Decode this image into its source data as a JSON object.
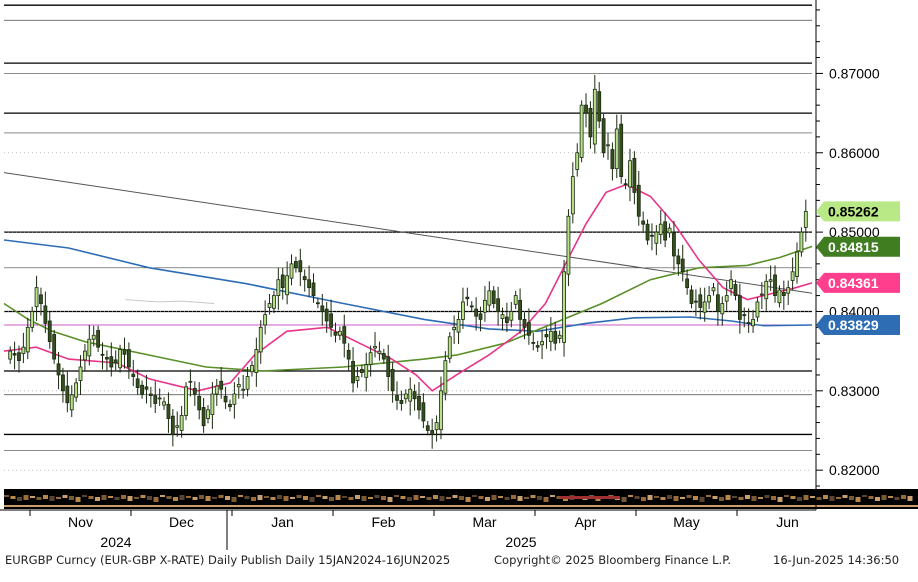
{
  "chart_data": {
    "type": "candlestick",
    "symbol": "EURGBP Curncy (EUR-GBP X-RATE)",
    "ylim": [
      0.8175,
      0.879
    ],
    "y_ticks": [
      "0.82000",
      "0.83000",
      "0.84000",
      "0.85000",
      "0.86000",
      "0.87000"
    ],
    "x_months": [
      "Nov",
      "Dec",
      "Jan",
      "Feb",
      "Mar",
      "Apr",
      "May",
      "Jun"
    ],
    "x_years": [
      "2024",
      "2025"
    ],
    "price_tags": [
      {
        "value": "0.85262",
        "level": 0.85262,
        "bg": "#b8e986",
        "fg": "#000000"
      },
      {
        "value": "0.84815",
        "level": 0.84815,
        "bg": "#3f7d20",
        "fg": "#ffffff"
      },
      {
        "value": "0.84361",
        "level": 0.84361,
        "bg": "#ff3f8e",
        "fg": "#ffffff"
      },
      {
        "value": "0.83829",
        "level": 0.83829,
        "bg": "#2e6db4",
        "fg": "#ffffff"
      }
    ],
    "horizontal_levels": [
      0.8786,
      0.8767,
      0.8713,
      0.87,
      0.865,
      0.8625,
      0.85,
      0.8455,
      0.84,
      0.8383,
      0.8325,
      0.8295,
      0.8245,
      0.8225
    ],
    "trendline": {
      "from": [
        0,
        0.8575
      ],
      "to": [
        1,
        0.8423
      ]
    },
    "series": [
      {
        "name": "",
        "color": "#2e6db4",
        "points": [
          [
            0,
            0.849
          ],
          [
            0.08,
            0.848
          ],
          [
            0.18,
            0.8455
          ],
          [
            0.3,
            0.8435
          ],
          [
            0.42,
            0.841
          ],
          [
            0.52,
            0.839
          ],
          [
            0.6,
            0.8378
          ],
          [
            0.66,
            0.8375
          ],
          [
            0.72,
            0.8385
          ],
          [
            0.78,
            0.8392
          ],
          [
            0.85,
            0.8393
          ],
          [
            0.9,
            0.8388
          ],
          [
            0.94,
            0.8382
          ],
          [
            1,
            0.8383
          ]
        ]
      },
      {
        "name": "",
        "color": "#5a8f29",
        "points": [
          [
            0,
            0.841
          ],
          [
            0.03,
            0.839
          ],
          [
            0.06,
            0.8375
          ],
          [
            0.1,
            0.8362
          ],
          [
            0.18,
            0.8345
          ],
          [
            0.25,
            0.833
          ],
          [
            0.32,
            0.8325
          ],
          [
            0.42,
            0.833
          ],
          [
            0.52,
            0.834
          ],
          [
            0.56,
            0.8345
          ],
          [
            0.62,
            0.836
          ],
          [
            0.68,
            0.8385
          ],
          [
            0.74,
            0.841
          ],
          [
            0.8,
            0.844
          ],
          [
            0.86,
            0.8455
          ],
          [
            0.92,
            0.8458
          ],
          [
            0.96,
            0.8468
          ],
          [
            1,
            0.8482
          ]
        ]
      },
      {
        "name": "",
        "color": "#e8358a",
        "points": [
          [
            0,
            0.835
          ],
          [
            0.04,
            0.8355
          ],
          [
            0.08,
            0.834
          ],
          [
            0.14,
            0.8335
          ],
          [
            0.18,
            0.8315
          ],
          [
            0.24,
            0.83
          ],
          [
            0.28,
            0.831
          ],
          [
            0.31,
            0.8345
          ],
          [
            0.35,
            0.8375
          ],
          [
            0.4,
            0.838
          ],
          [
            0.44,
            0.836
          ],
          [
            0.48,
            0.834
          ],
          [
            0.51,
            0.832
          ],
          [
            0.53,
            0.83
          ],
          [
            0.56,
            0.832
          ],
          [
            0.6,
            0.8345
          ],
          [
            0.64,
            0.8375
          ],
          [
            0.67,
            0.841
          ],
          [
            0.7,
            0.847
          ],
          [
            0.72,
            0.851
          ],
          [
            0.745,
            0.855
          ],
          [
            0.77,
            0.856
          ],
          [
            0.8,
            0.8545
          ],
          [
            0.83,
            0.851
          ],
          [
            0.86,
            0.8465
          ],
          [
            0.89,
            0.843
          ],
          [
            0.92,
            0.8415
          ],
          [
            0.94,
            0.842
          ],
          [
            0.96,
            0.8425
          ],
          [
            0.98,
            0.843
          ],
          [
            1,
            0.8436
          ]
        ]
      },
      {
        "name": "",
        "color": "#c8c8c8",
        "points": [
          [
            0.15,
            0.8415
          ],
          [
            0.19,
            0.8412
          ],
          [
            0.22,
            0.8413
          ],
          [
            0.26,
            0.841
          ]
        ]
      }
    ],
    "candles_close": [
      0.835,
      0.8345,
      0.8338,
      0.8355,
      0.838,
      0.84,
      0.843,
      0.841,
      0.8385,
      0.8362,
      0.834,
      0.832,
      0.83,
      0.8285,
      0.8295,
      0.831,
      0.833,
      0.835,
      0.8365,
      0.837,
      0.8355,
      0.8345,
      0.834,
      0.833,
      0.8335,
      0.8352,
      0.8346,
      0.833,
      0.8318,
      0.8304,
      0.8296,
      0.8302,
      0.8294,
      0.8284,
      0.8291,
      0.8286,
      0.8265,
      0.8245,
      0.8256,
      0.8269,
      0.8305,
      0.8312,
      0.8296,
      0.8276,
      0.8256,
      0.8276,
      0.8296,
      0.8306,
      0.8302,
      0.8286,
      0.828,
      0.8296,
      0.8308,
      0.8302,
      0.8318,
      0.8332,
      0.8352,
      0.838,
      0.8396,
      0.841,
      0.842,
      0.844,
      0.843,
      0.8445,
      0.846,
      0.8455,
      0.845,
      0.844,
      0.843,
      0.842,
      0.841,
      0.84,
      0.8388,
      0.838,
      0.837,
      0.8375,
      0.836,
      0.834,
      0.831,
      0.8318,
      0.8323,
      0.8333,
      0.8348,
      0.8356,
      0.835,
      0.834,
      0.8318,
      0.83,
      0.8288,
      0.8284,
      0.8296,
      0.8302,
      0.829,
      0.8276,
      0.8262,
      0.825,
      0.8245,
      0.826,
      0.83,
      0.8338,
      0.8368,
      0.838,
      0.839,
      0.8412,
      0.8416,
      0.8406,
      0.8394,
      0.839,
      0.8414,
      0.8426,
      0.841,
      0.84,
      0.8396,
      0.8386,
      0.84,
      0.842,
      0.839,
      0.838,
      0.837,
      0.836,
      0.8355,
      0.8362,
      0.8368,
      0.8375,
      0.836,
      0.837,
      0.845,
      0.852,
      0.857,
      0.86,
      0.866,
      0.865,
      0.862,
      0.868,
      0.864,
      0.86,
      0.861,
      0.858,
      0.863,
      0.857,
      0.856,
      0.859,
      0.855,
      0.852,
      0.851,
      0.849,
      0.8495,
      0.85,
      0.851,
      0.849,
      0.8505,
      0.847,
      0.846,
      0.845,
      0.843,
      0.841,
      0.8412,
      0.8405,
      0.8412,
      0.842,
      0.843,
      0.84,
      0.841,
      0.842,
      0.844,
      0.842,
      0.839,
      0.8395,
      0.8385,
      0.839,
      0.8412,
      0.8422,
      0.8438,
      0.844,
      0.842,
      0.8427,
      0.842,
      0.843,
      0.845,
      0.8475,
      0.85,
      0.8526
    ],
    "volume_strip": true
  },
  "footer": {
    "left": "EURGBP Curncy (EUR-GBP X-RATE) Daily Publish  Daily 15JAN2024-16JUN2025",
    "mid": "Copyright© 2025 Bloomberg Finance L.P.",
    "right": "16-Jun-2025 14:36:50"
  }
}
